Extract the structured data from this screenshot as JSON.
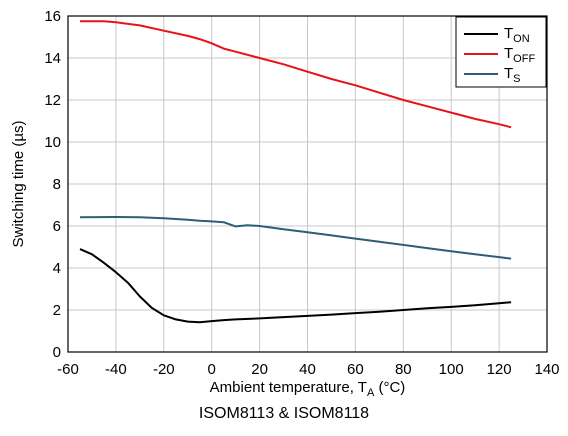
{
  "chart_data": {
    "type": "line",
    "title": "",
    "caption": "ISOM8113 & ISOM8118",
    "xlabel": {
      "main": "Ambient temperature, T",
      "sub": "A",
      "unit": " (°C)"
    },
    "ylabel": "Switching time (µs)",
    "xlim": [
      -60,
      140
    ],
    "ylim": [
      0,
      16
    ],
    "xticks": [
      -60,
      -40,
      -20,
      0,
      20,
      40,
      60,
      80,
      100,
      120,
      140
    ],
    "yticks": [
      0,
      2,
      4,
      6,
      8,
      10,
      12,
      14,
      16
    ],
    "grid": true,
    "legend_position": "top-right",
    "series": [
      {
        "name": "TON",
        "label_main": "T",
        "label_sub": "ON",
        "color": "#000000",
        "x": [
          -55,
          -50,
          -45,
          -40,
          -35,
          -30,
          -25,
          -20,
          -15,
          -10,
          -5,
          0,
          5,
          10,
          20,
          30,
          40,
          50,
          60,
          70,
          80,
          90,
          100,
          110,
          120,
          125
        ],
        "y": [
          4.9,
          4.65,
          4.25,
          3.8,
          3.3,
          2.65,
          2.1,
          1.75,
          1.55,
          1.45,
          1.42,
          1.47,
          1.52,
          1.55,
          1.6,
          1.66,
          1.72,
          1.78,
          1.85,
          1.92,
          2.0,
          2.08,
          2.15,
          2.23,
          2.32,
          2.37
        ]
      },
      {
        "name": "TOFF",
        "label_main": "T",
        "label_sub": "OFF",
        "color": "#e8121a",
        "x": [
          -55,
          -45,
          -40,
          -30,
          -20,
          -10,
          -5,
          0,
          5,
          10,
          20,
          30,
          40,
          50,
          60,
          70,
          80,
          90,
          100,
          110,
          120,
          125
        ],
        "y": [
          15.75,
          15.75,
          15.7,
          15.55,
          15.3,
          15.05,
          14.9,
          14.7,
          14.45,
          14.3,
          14.0,
          13.7,
          13.35,
          13.0,
          12.7,
          12.35,
          12.0,
          11.7,
          11.4,
          11.1,
          10.85,
          10.7
        ]
      },
      {
        "name": "TS",
        "label_main": "T",
        "label_sub": "S",
        "color": "#2e5d78",
        "x": [
          -55,
          -40,
          -30,
          -20,
          -10,
          -5,
          0,
          5,
          10,
          15,
          20,
          30,
          40,
          50,
          60,
          70,
          80,
          90,
          100,
          110,
          120,
          125
        ],
        "y": [
          6.42,
          6.43,
          6.42,
          6.37,
          6.3,
          6.25,
          6.22,
          6.18,
          5.98,
          6.04,
          6.0,
          5.85,
          5.7,
          5.55,
          5.4,
          5.25,
          5.1,
          4.95,
          4.8,
          4.65,
          4.52,
          4.45
        ]
      }
    ]
  }
}
